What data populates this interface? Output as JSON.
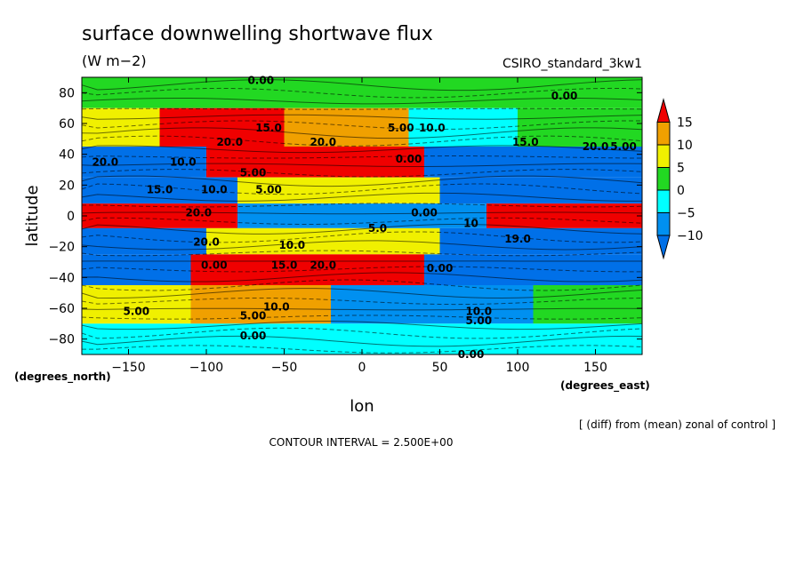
{
  "chart_data": {
    "type": "heatmap",
    "title": "surface downwelling shortwave flux",
    "units": "(W m−2)",
    "model_label": "CSIRO_standard_3kw1",
    "xlabel": "lon",
    "ylabel": "latitude",
    "x_unit_label": "(degrees_east)",
    "y_unit_label": "(degrees_north)",
    "xlim": [
      -180,
      180
    ],
    "ylim": [
      -90,
      90
    ],
    "x_ticks": [
      -150,
      -100,
      -50,
      0,
      50,
      100,
      150
    ],
    "y_ticks": [
      80,
      60,
      40,
      20,
      0,
      -20,
      -40,
      -60,
      -80
    ],
    "x_tick_labels": [
      "−150",
      "−100",
      "−50",
      "0",
      "50",
      "100",
      "150"
    ],
    "y_tick_labels": [
      "80",
      "60",
      "40",
      "20",
      "0",
      "−20",
      "−40",
      "−60",
      "−80"
    ],
    "colorbar": {
      "levels": [
        15,
        10,
        5,
        0,
        -5,
        -10
      ],
      "labels": [
        "15",
        "10",
        "5",
        "0",
        "−5",
        "−10"
      ],
      "colors": [
        "#f00000",
        "#f0a000",
        "#f0f000",
        "#22d822",
        "#00ffff",
        "#0090f0",
        "#0070e8"
      ]
    },
    "contour_interval_label": "CONTOUR INTERVAL = 2.500E+00",
    "note": "[ (diff) from (mean) zonal of control ]",
    "bands": [
      {
        "lat_top": 90,
        "lat_bottom": 70,
        "segments": [
          {
            "lon0": -180,
            "lon1": 180,
            "value": 2.5
          }
        ]
      },
      {
        "lat_top": 70,
        "lat_bottom": 45,
        "segments": [
          {
            "lon0": -180,
            "lon1": -130,
            "value": 7.5
          },
          {
            "lon0": -130,
            "lon1": -50,
            "value": 17.5
          },
          {
            "lon0": -50,
            "lon1": 30,
            "value": 12.5
          },
          {
            "lon0": 30,
            "lon1": 100,
            "value": -2.5
          },
          {
            "lon0": 100,
            "lon1": 180,
            "value": 2.5
          }
        ]
      },
      {
        "lat_top": 45,
        "lat_bottom": 25,
        "segments": [
          {
            "lon0": -180,
            "lon1": -100,
            "value": -12.5
          },
          {
            "lon0": -100,
            "lon1": 40,
            "value": 17.5
          },
          {
            "lon0": 40,
            "lon1": 180,
            "value": -12.5
          }
        ]
      },
      {
        "lat_top": 25,
        "lat_bottom": 8,
        "segments": [
          {
            "lon0": -180,
            "lon1": -80,
            "value": -12.5
          },
          {
            "lon0": -80,
            "lon1": 50,
            "value": 7.5
          },
          {
            "lon0": 50,
            "lon1": 180,
            "value": -12.5
          }
        ]
      },
      {
        "lat_top": 8,
        "lat_bottom": -8,
        "segments": [
          {
            "lon0": -180,
            "lon1": -80,
            "value": 17.5
          },
          {
            "lon0": -80,
            "lon1": 80,
            "value": -7.5
          },
          {
            "lon0": 80,
            "lon1": 180,
            "value": 17.5
          }
        ]
      },
      {
        "lat_top": -8,
        "lat_bottom": -25,
        "segments": [
          {
            "lon0": -180,
            "lon1": -100,
            "value": -12.5
          },
          {
            "lon0": -100,
            "lon1": 50,
            "value": 7.5
          },
          {
            "lon0": 50,
            "lon1": 180,
            "value": -12.5
          }
        ]
      },
      {
        "lat_top": -25,
        "lat_bottom": -45,
        "segments": [
          {
            "lon0": -180,
            "lon1": -110,
            "value": -12.5
          },
          {
            "lon0": -110,
            "lon1": 40,
            "value": 17.5
          },
          {
            "lon0": 40,
            "lon1": 180,
            "value": -12.5
          }
        ]
      },
      {
        "lat_top": -45,
        "lat_bottom": -70,
        "segments": [
          {
            "lon0": -180,
            "lon1": -110,
            "value": 7.5
          },
          {
            "lon0": -110,
            "lon1": -20,
            "value": 12.5
          },
          {
            "lon0": -20,
            "lon1": 110,
            "value": -7.5
          },
          {
            "lon0": 110,
            "lon1": 180,
            "value": 2.5
          }
        ]
      },
      {
        "lat_top": -70,
        "lat_bottom": -90,
        "segments": [
          {
            "lon0": -180,
            "lon1": 180,
            "value": -2.5
          }
        ]
      }
    ],
    "contour_labels": [
      {
        "lon": -65,
        "lat": 88,
        "text": "0.00"
      },
      {
        "lon": 130,
        "lat": 78,
        "text": "0.00"
      },
      {
        "lon": -60,
        "lat": 57,
        "text": "15.0"
      },
      {
        "lon": -85,
        "lat": 48,
        "text": "20.0"
      },
      {
        "lon": -25,
        "lat": 48,
        "text": "20.0"
      },
      {
        "lon": 25,
        "lat": 57,
        "text": "5.00"
      },
      {
        "lon": 45,
        "lat": 57,
        "text": "10.0"
      },
      {
        "lon": 105,
        "lat": 48,
        "text": "15.0"
      },
      {
        "lon": 150,
        "lat": 45,
        "text": "20.0"
      },
      {
        "lon": 168,
        "lat": 45,
        "text": "5.00"
      },
      {
        "lon": -165,
        "lat": 35,
        "text": "20.0"
      },
      {
        "lon": -115,
        "lat": 35,
        "text": "10.0"
      },
      {
        "lon": -70,
        "lat": 28,
        "text": "5.00"
      },
      {
        "lon": 30,
        "lat": 37,
        "text": "0.00"
      },
      {
        "lon": -130,
        "lat": 17,
        "text": "15.0"
      },
      {
        "lon": -95,
        "lat": 17,
        "text": "10.0"
      },
      {
        "lon": -60,
        "lat": 17,
        "text": "5.00"
      },
      {
        "lon": -105,
        "lat": 2,
        "text": "20.0"
      },
      {
        "lon": 40,
        "lat": 2,
        "text": "0.00"
      },
      {
        "lon": 70,
        "lat": -5,
        "text": "10"
      },
      {
        "lon": 10,
        "lat": -8,
        "text": "5.0"
      },
      {
        "lon": 100,
        "lat": -15,
        "text": "19.0"
      },
      {
        "lon": -100,
        "lat": -17,
        "text": "20.0"
      },
      {
        "lon": -45,
        "lat": -19,
        "text": "10.0"
      },
      {
        "lon": -95,
        "lat": -32,
        "text": "0.00"
      },
      {
        "lon": -50,
        "lat": -32,
        "text": "15.0"
      },
      {
        "lon": -25,
        "lat": -32,
        "text": "20.0"
      },
      {
        "lon": 50,
        "lat": -34,
        "text": "0.00"
      },
      {
        "lon": -145,
        "lat": -62,
        "text": "5.00"
      },
      {
        "lon": -55,
        "lat": -59,
        "text": "10.0"
      },
      {
        "lon": -70,
        "lat": -65,
        "text": "5.00"
      },
      {
        "lon": 75,
        "lat": -62,
        "text": "10.0"
      },
      {
        "lon": 75,
        "lat": -68,
        "text": "5.00"
      },
      {
        "lon": -70,
        "lat": -78,
        "text": "0.00"
      },
      {
        "lon": 70,
        "lat": -90,
        "text": "0.00"
      }
    ]
  }
}
